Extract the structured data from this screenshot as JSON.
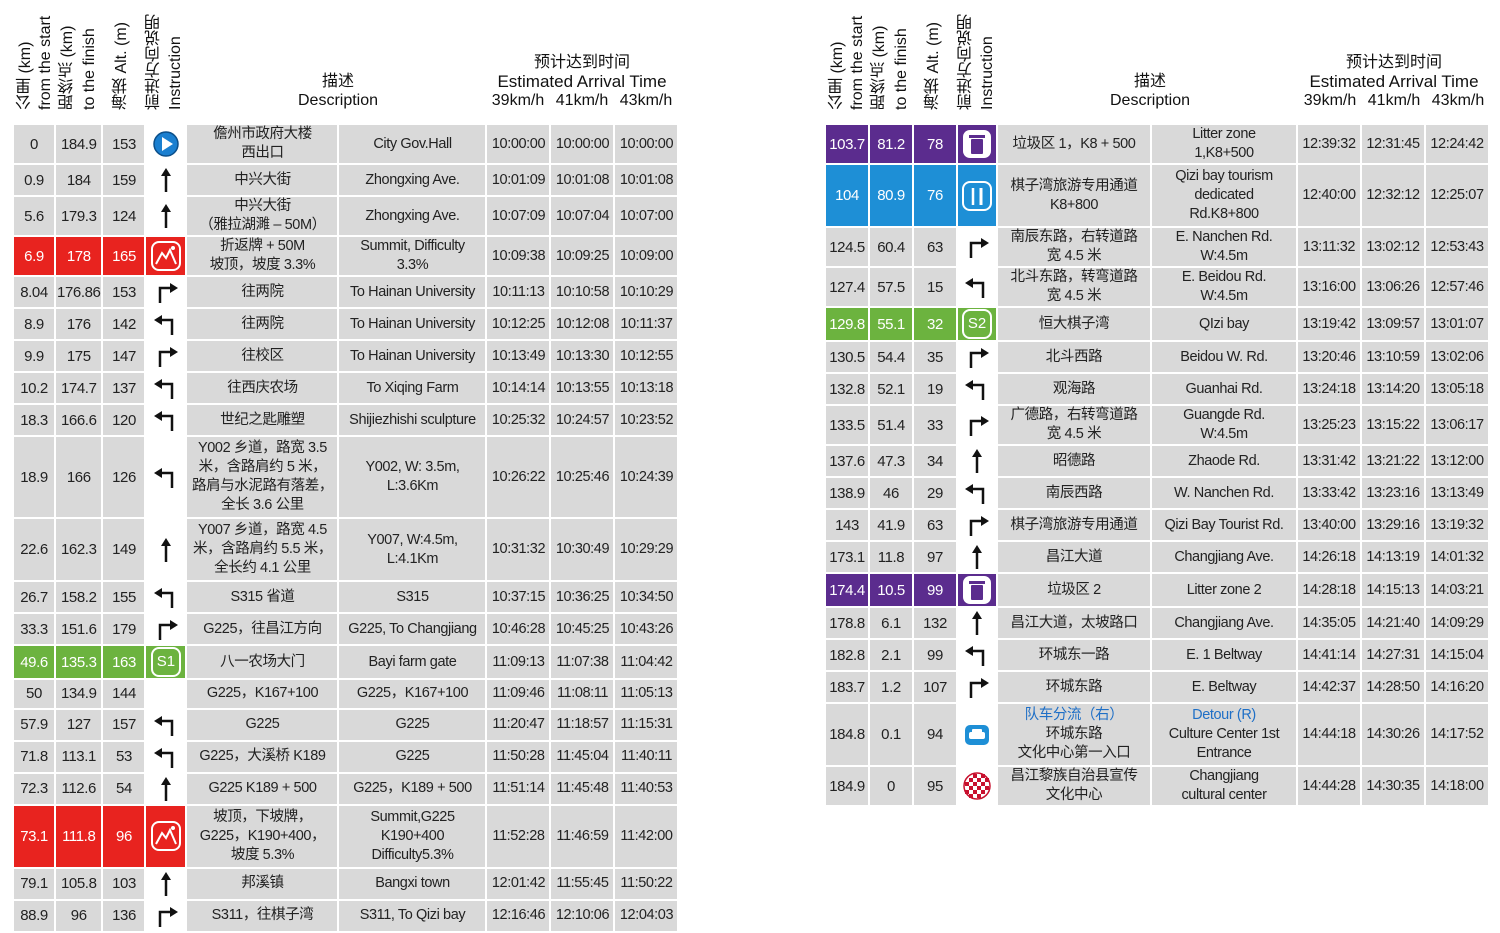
{
  "header": {
    "km": [
      "公里 (km)",
      "from the start"
    ],
    "to_finish": [
      "距终点 (km)",
      "to the finish"
    ],
    "alt": [
      "海拔 Alt. (m)"
    ],
    "instruction": [
      "前进方向说明",
      "Instruction"
    ],
    "description": [
      "描述",
      "Description"
    ],
    "eta": "预计达到时间",
    "eta_en": "Estimated Arrival Time",
    "speeds": [
      "39km/h",
      "41km/h",
      "43km/h"
    ]
  },
  "tables": [
    {
      "rows": [
        {
          "km": 0,
          "to_finish": 184.9,
          "alt": 153,
          "instruction": "start",
          "cn": "儋州市政府大楼\n西出口",
          "en": "City Gov.Hall",
          "times": [
            "10:00:00",
            "10:00:00",
            "10:00:00"
          ]
        },
        {
          "km": 0.9,
          "to_finish": 184,
          "alt": 159,
          "instruction": "straight",
          "cn": "中兴大街",
          "en": "Zhongxing Ave.",
          "times": [
            "10:01:09",
            "10:01:08",
            "10:01:08"
          ]
        },
        {
          "km": 5.6,
          "to_finish": 179.3,
          "alt": 124,
          "instruction": "straight",
          "cn": "中兴大街\n（雅拉湖濉 – 50M）",
          "en": "Zhongxing Ave.",
          "times": [
            "10:07:09",
            "10:07:04",
            "10:07:00"
          ]
        },
        {
          "km": 6.9,
          "to_finish": 178,
          "alt": 165,
          "instruction": "summit",
          "highlight": "#e8231f",
          "cn": "折返牌 + 50M\n坡顶，坡度 3.3%",
          "en": "Summit, Difficulty\n3.3%",
          "times": [
            "10:09:38",
            "10:09:25",
            "10:09:00"
          ]
        },
        {
          "km": 8.04,
          "to_finish": 176.86,
          "alt": 153,
          "instruction": "right",
          "cn": "往两院",
          "en": "To Hainan University",
          "times": [
            "10:11:13",
            "10:10:58",
            "10:10:29"
          ]
        },
        {
          "km": 8.9,
          "to_finish": 176,
          "alt": 142,
          "instruction": "left",
          "cn": "往两院",
          "en": "To Hainan University",
          "times": [
            "10:12:25",
            "10:12:08",
            "10:11:37"
          ]
        },
        {
          "km": 9.9,
          "to_finish": 175,
          "alt": 147,
          "instruction": "right",
          "cn": "往校区",
          "en": "To Hainan University",
          "times": [
            "10:13:49",
            "10:13:30",
            "10:12:55"
          ]
        },
        {
          "km": 10.2,
          "to_finish": 174.7,
          "alt": 137,
          "instruction": "left",
          "cn": "往西庆农场",
          "en": "To Xiqing Farm",
          "times": [
            "10:14:14",
            "10:13:55",
            "10:13:18"
          ]
        },
        {
          "km": 18.3,
          "to_finish": 166.6,
          "alt": 120,
          "instruction": "left",
          "cn": "世纪之匙雕塑",
          "en": "Shijiezhishi sculpture",
          "times": [
            "10:25:32",
            "10:24:57",
            "10:23:52"
          ]
        },
        {
          "km": 18.9,
          "to_finish": 166,
          "alt": 126,
          "instruction": "left",
          "cn": "Y002 乡道，路宽 3.5\n米，含路肩约 5 米，\n路肩与水泥路有落差，\n全长 3.6 公里",
          "en": "Y002, W: 3.5m,\nL:3.6Km",
          "times": [
            "10:26:22",
            "10:25:46",
            "10:24:39"
          ]
        },
        {
          "km": 22.6,
          "to_finish": 162.3,
          "alt": 149,
          "instruction": "straight",
          "cn": "Y007 乡道，路宽 4.5\n米，含路肩约 5.5 米，\n全长约 4.1 公里",
          "en": "Y007, W:4.5m,\nL:4.1Km",
          "times": [
            "10:31:32",
            "10:30:49",
            "10:29:29"
          ]
        },
        {
          "km": 26.7,
          "to_finish": 158.2,
          "alt": 155,
          "instruction": "left",
          "cn": "S315 省道",
          "en": "S315",
          "times": [
            "10:37:15",
            "10:36:25",
            "10:34:50"
          ]
        },
        {
          "km": 33.3,
          "to_finish": 151.6,
          "alt": 179,
          "instruction": "right",
          "cn": "G225，往昌江方向",
          "en": "G225, To Changjiang",
          "times": [
            "10:46:28",
            "10:45:25",
            "10:43:26"
          ]
        },
        {
          "km": 49.6,
          "to_finish": 135.3,
          "alt": 163,
          "instruction": "sprint",
          "icon_label": "S1",
          "highlight": "#6cb33f",
          "cn": "八一农场大门",
          "en": "Bayi farm gate",
          "times": [
            "11:09:13",
            "11:07:38",
            "11:04:42"
          ]
        },
        {
          "km": 50,
          "to_finish": 134.9,
          "alt": 144,
          "instruction": "none",
          "cn": "G225，K167+100",
          "en": "G225，K167+100",
          "times": [
            "11:09:46",
            "11:08:11",
            "11:05:13"
          ]
        },
        {
          "km": 57.9,
          "to_finish": 127,
          "alt": 157,
          "instruction": "left",
          "cn": "G225",
          "en": "G225",
          "times": [
            "11:20:47",
            "11:18:57",
            "11:15:31"
          ]
        },
        {
          "km": 71.8,
          "to_finish": 113.1,
          "alt": 53,
          "instruction": "left",
          "cn": "G225，大溪桥 K189",
          "en": "G225",
          "times": [
            "11:50:28",
            "11:45:04",
            "11:40:11"
          ]
        },
        {
          "km": 72.3,
          "to_finish": 112.6,
          "alt": 54,
          "instruction": "straight",
          "cn": "G225 K189 + 500",
          "en": "G225，K189 + 500",
          "times": [
            "11:51:14",
            "11:45:48",
            "11:40:53"
          ]
        },
        {
          "km": 73.1,
          "to_finish": 111.8,
          "alt": 96,
          "instruction": "summit",
          "highlight": "#e8231f",
          "cn": "坡顶，下坡牌，\nG225，K190+400，\n坡度 5.3%",
          "en": "Summit,G225\nK190+400\nDifficulty5.3%",
          "times": [
            "11:52:28",
            "11:46:59",
            "11:42:00"
          ]
        },
        {
          "km": 79.1,
          "to_finish": 105.8,
          "alt": 103,
          "instruction": "straight",
          "cn": "邦溪镇",
          "en": "Bangxi town",
          "times": [
            "12:01:42",
            "11:55:45",
            "11:50:22"
          ]
        },
        {
          "km": 88.9,
          "to_finish": 96,
          "alt": 136,
          "instruction": "right",
          "cn": "S311，往棋子湾",
          "en": "S311, To Qizi bay",
          "times": [
            "12:16:46",
            "12:10:06",
            "12:04:03"
          ]
        }
      ]
    },
    {
      "rows": [
        {
          "km": 103.7,
          "to_finish": 81.2,
          "alt": 78,
          "instruction": "litter",
          "highlight": "#5b2c8e",
          "cn": "垃圾区 1，K8 + 500",
          "en": "Litter zone\n1,K8+500",
          "times": [
            "12:39:32",
            "12:31:45",
            "12:24:42"
          ]
        },
        {
          "km": 104,
          "to_finish": 80.9,
          "alt": 76,
          "instruction": "feed",
          "highlight": "#1e8fd6",
          "cn": "棋子湾旅游专用通道\nK8+800",
          "en": "Qizi bay tourism\ndedicated\nRd.K8+800",
          "times": [
            "12:40:00",
            "12:32:12",
            "12:25:07"
          ]
        },
        {
          "km": 124.5,
          "to_finish": 60.4,
          "alt": 63,
          "instruction": "right",
          "cn": "南辰东路，右转道路\n宽 4.5 米",
          "en": "E. Nanchen Rd.\nW:4.5m",
          "times": [
            "13:11:32",
            "13:02:12",
            "12:53:43"
          ]
        },
        {
          "km": 127.4,
          "to_finish": 57.5,
          "alt": 15,
          "instruction": "left",
          "cn": "北斗东路，转弯道路\n宽 4.5 米",
          "en": "E. Beidou Rd.\nW:4.5m",
          "times": [
            "13:16:00",
            "13:06:26",
            "12:57:46"
          ]
        },
        {
          "km": 129.8,
          "to_finish": 55.1,
          "alt": 32,
          "instruction": "sprint",
          "icon_label": "S2",
          "highlight": "#6cb33f",
          "cn": "恒大棋子湾",
          "en": "QIzi bay",
          "times": [
            "13:19:42",
            "13:09:57",
            "13:01:07"
          ]
        },
        {
          "km": 130.5,
          "to_finish": 54.4,
          "alt": 35,
          "instruction": "right",
          "cn": "北斗西路",
          "en": "Beidou W. Rd.",
          "times": [
            "13:20:46",
            "13:10:59",
            "13:02:06"
          ]
        },
        {
          "km": 132.8,
          "to_finish": 52.1,
          "alt": 19,
          "instruction": "left",
          "cn": "观海路",
          "en": "Guanhai Rd.",
          "times": [
            "13:24:18",
            "13:14:20",
            "13:05:18"
          ]
        },
        {
          "km": 133.5,
          "to_finish": 51.4,
          "alt": 33,
          "instruction": "right",
          "cn": "广德路，右转弯道路\n宽 4.5 米",
          "en": "Guangde Rd.\nW:4.5m",
          "times": [
            "13:25:23",
            "13:15:22",
            "13:06:17"
          ]
        },
        {
          "km": 137.6,
          "to_finish": 47.3,
          "alt": 34,
          "instruction": "straight",
          "cn": "昭德路",
          "en": "Zhaode Rd.",
          "times": [
            "13:31:42",
            "13:21:22",
            "13:12:00"
          ]
        },
        {
          "km": 138.9,
          "to_finish": 46,
          "alt": 29,
          "instruction": "left",
          "cn": "南辰西路",
          "en": "W. Nanchen Rd.",
          "times": [
            "13:33:42",
            "13:23:16",
            "13:13:49"
          ]
        },
        {
          "km": 143,
          "to_finish": 41.9,
          "alt": 63,
          "instruction": "right",
          "cn": "棋子湾旅游专用通道",
          "en": "Qizi Bay Tourist Rd.",
          "times": [
            "13:40:00",
            "13:29:16",
            "13:19:32"
          ]
        },
        {
          "km": 173.1,
          "to_finish": 11.8,
          "alt": 97,
          "instruction": "straight",
          "cn": "昌江大道",
          "en": "Changjiang Ave.",
          "times": [
            "14:26:18",
            "14:13:19",
            "14:01:32"
          ]
        },
        {
          "km": 174.4,
          "to_finish": 10.5,
          "alt": 99,
          "instruction": "litter",
          "highlight": "#5b2c8e",
          "cn": "垃圾区 2",
          "en": "Litter zone 2",
          "times": [
            "14:28:18",
            "14:15:13",
            "14:03:21"
          ]
        },
        {
          "km": 178.8,
          "to_finish": 6.1,
          "alt": 132,
          "instruction": "straight",
          "cn": "昌江大道，太坡路口",
          "en": "Changjiang Ave.",
          "times": [
            "14:35:05",
            "14:21:40",
            "14:09:29"
          ]
        },
        {
          "km": 182.8,
          "to_finish": 2.1,
          "alt": 99,
          "instruction": "left",
          "cn": "环城东一路",
          "en": "E. 1 Beltway",
          "times": [
            "14:41:14",
            "14:27:31",
            "14:15:04"
          ]
        },
        {
          "km": 183.7,
          "to_finish": 1.2,
          "alt": 107,
          "instruction": "right",
          "cn": "环城东路",
          "en": "E. Beltway",
          "times": [
            "14:42:37",
            "14:28:50",
            "14:16:20"
          ]
        },
        {
          "km": 184.8,
          "to_finish": 0.1,
          "alt": 94,
          "instruction": "detour",
          "cn_note": "队车分流（右）",
          "cn": "环城东路\n文化中心第一入口",
          "en_note": "Detour (R)",
          "en": "Culture Center 1st\nEntrance",
          "times": [
            "14:44:18",
            "14:30:26",
            "14:17:52"
          ]
        },
        {
          "km": 184.9,
          "to_finish": 0,
          "alt": 95,
          "instruction": "finish",
          "cn": "昌江黎族自治县宣传\n文化中心",
          "en": "Changjiang\ncultural center",
          "times": [
            "14:44:28",
            "14:30:35",
            "14:18:00"
          ]
        }
      ]
    }
  ]
}
